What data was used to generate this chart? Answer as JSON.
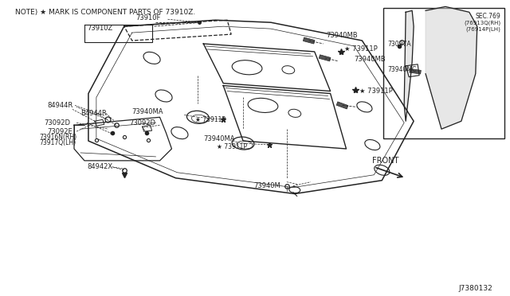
{
  "bg_color": "#ffffff",
  "line_color": "#222222",
  "title_note": "NOTE) ★ MARK IS COMPONENT PARTS OF 73910Z.",
  "diagram_number": "J7380132",
  "front_label": "FRONT",
  "inset_title_line1": "SEC.769",
  "inset_title_line2": "(76913Q(RH)",
  "inset_title_line3": "(76914P(LH)",
  "figsize": [
    6.4,
    3.72
  ],
  "dpi": 100
}
